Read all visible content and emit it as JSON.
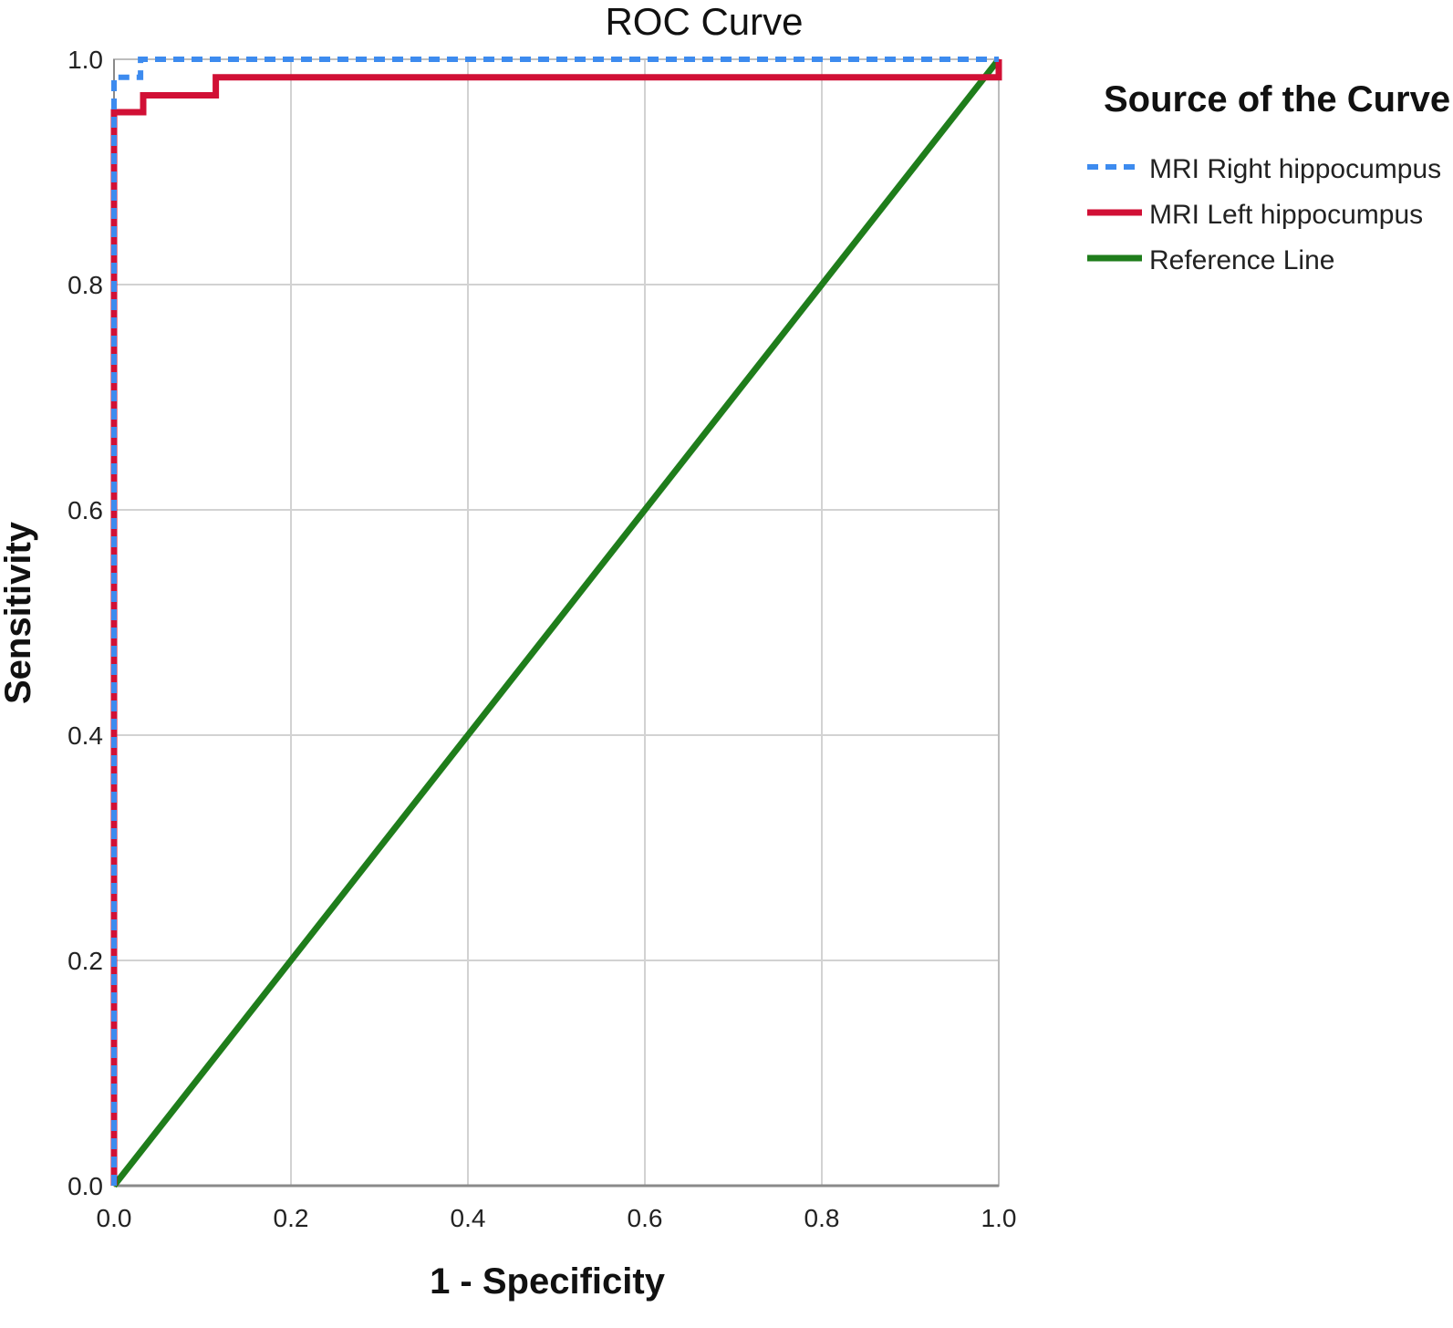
{
  "chart_data": {
    "type": "line",
    "title": "ROC Curve",
    "xlabel": "1 - Specificity",
    "ylabel": "Sensitivity",
    "xlim": [
      0,
      1
    ],
    "ylim": [
      0,
      1
    ],
    "x_ticks": [
      "0.0",
      "0.2",
      "0.4",
      "0.6",
      "0.8",
      "1.0"
    ],
    "y_ticks": [
      "0.0",
      "0.2",
      "0.4",
      "0.6",
      "0.8",
      "1.0"
    ],
    "grid": true,
    "legend": {
      "title": "Source of the Curve",
      "placement": "right"
    },
    "series": [
      {
        "name": "MRI Right hippocumpus",
        "color": "#3d8bef",
        "style": "dashed",
        "x": [
          0.0,
          0.0,
          0.03,
          0.03,
          1.0
        ],
        "y": [
          0.0,
          0.984,
          0.984,
          1.0,
          1.0
        ]
      },
      {
        "name": "MRI Left hippocumpus",
        "color": "#d11035",
        "style": "solid",
        "x": [
          0.0,
          0.0,
          0.033,
          0.033,
          0.115,
          0.115,
          1.0,
          1.0
        ],
        "y": [
          0.0,
          0.953,
          0.953,
          0.968,
          0.968,
          0.984,
          0.984,
          1.0
        ]
      },
      {
        "name": "Reference Line",
        "color": "#1f7d1b",
        "style": "solid",
        "x": [
          0.0,
          1.0
        ],
        "y": [
          0.0,
          1.0
        ]
      }
    ]
  }
}
